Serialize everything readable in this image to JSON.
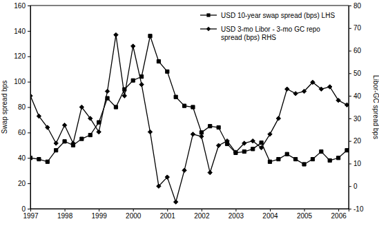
{
  "chart_data": {
    "type": "line",
    "x": [
      1997,
      1997.25,
      1997.5,
      1997.75,
      1998,
      1998.25,
      1998.5,
      1998.75,
      1999,
      1999.25,
      1999.5,
      1999.75,
      2000,
      2000.25,
      2000.5,
      2000.75,
      2001,
      2001.25,
      2001.5,
      2001.75,
      2002,
      2002.25,
      2002.5,
      2002.75,
      2003,
      2003.25,
      2003.5,
      2003.75,
      2004,
      2004.25,
      2004.5,
      2004.75,
      2005,
      2005.25,
      2005.5,
      2005.75,
      2006,
      2006.25
    ],
    "xlim": [
      1997,
      2006.3
    ],
    "xticks": [
      1997,
      1998,
      1999,
      2000,
      2001,
      2002,
      2003,
      2004,
      2005,
      2006
    ],
    "ylim": [
      0,
      160
    ],
    "yticks": [
      0,
      20,
      40,
      60,
      80,
      100,
      120,
      140,
      160
    ],
    "y2lim": [
      -10,
      80
    ],
    "y2ticks": [
      -10,
      0,
      10,
      20,
      30,
      40,
      50,
      60,
      70,
      80
    ],
    "y_label": "Swap spread bps",
    "y2_label": "Libor-GC spread bps",
    "legend": "top-right",
    "grid": false,
    "series": [
      {
        "name": "USD 10-year swap spread (bps) LHS",
        "color": "#000000",
        "marker": "square",
        "line_style": "solid",
        "axis": "y",
        "values": [
          40,
          39,
          37,
          46,
          53,
          50,
          55,
          58,
          68,
          87,
          80,
          94,
          101,
          104,
          136,
          116,
          108,
          88,
          81,
          80,
          60,
          65,
          64,
          51,
          44,
          45,
          47,
          52,
          37,
          39,
          43,
          39,
          35,
          39,
          45,
          38,
          40,
          46
        ]
      },
      {
        "name": "USD 3-mo Libor - 3-mo GC repo spread (bps) RHS",
        "color": "#000000",
        "marker": "diamond",
        "line_style": "solid",
        "axis": "y2",
        "values": [
          40,
          31,
          26,
          19,
          27,
          19,
          35,
          30,
          24,
          42,
          67,
          40,
          62,
          45,
          24,
          0,
          4,
          -7,
          7,
          23,
          22,
          6,
          18,
          20,
          15,
          19,
          20,
          17,
          23,
          30,
          43,
          41,
          42,
          46,
          43,
          44,
          38,
          36
        ]
      }
    ]
  }
}
